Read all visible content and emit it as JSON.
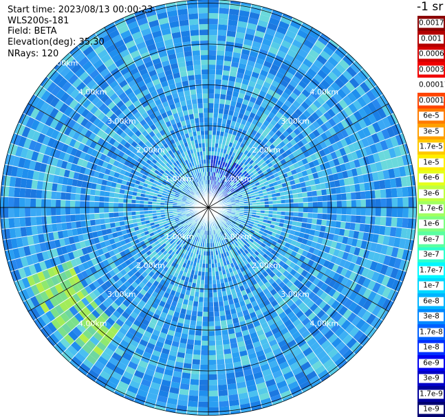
{
  "info": {
    "start_time": "Start time: 2023/08/13 00:00:23",
    "station": "WLS200s-181",
    "field": "Field: BETA",
    "elevation": "Elevation(deg): 35.30",
    "nrays": "NRays: 120"
  },
  "colorbar": {
    "unit": "-1 sr",
    "labels": [
      "0.0017",
      "0.001",
      "0.0006",
      "0.0003",
      "0.00017",
      "0.0001",
      "6e-5",
      "3e-5",
      "1.7e-5",
      "1e-5",
      "6e-6",
      "3e-6",
      "1.7e-6",
      "1e-6",
      "6e-7",
      "3e-7",
      "1.7e-7",
      "1e-7",
      "6e-8",
      "3e-8",
      "1.7e-8",
      "1e-8",
      "6e-9",
      "3e-9",
      "1.7e-9",
      "1e-9"
    ],
    "colors": [
      "#8b0000",
      "#b30000",
      "#d40000",
      "#f00000",
      "#ffffff",
      "#ff4500",
      "#ff7b00",
      "#ffa000",
      "#ffc800",
      "#ffee00",
      "#e6ff1a",
      "#bfff40",
      "#a0ff60",
      "#7dff80",
      "#5affa0",
      "#2dffcd",
      "#00f8ff",
      "#00d8ff",
      "#00b4ff",
      "#0088ff",
      "#0060ff",
      "#0030ff",
      "#0000f0",
      "#0000c8",
      "#00009c",
      "#000070"
    ]
  },
  "chart_data": {
    "type": "polar-ppi",
    "field": "BETA",
    "scan_start": "2023/08/13 00:00:23",
    "elevation_deg": 35.3,
    "n_rays": 120,
    "range_rings_km": [
      1.0,
      2.0,
      3.0,
      4.0,
      5.0
    ],
    "ring_labels": [
      "1.00km",
      "2.00km",
      "3.00km",
      "4.00km",
      "5.00km"
    ],
    "azimuth_spokes_deg": [
      0,
      30,
      60,
      90,
      120,
      150,
      180,
      210,
      240,
      270,
      300,
      330
    ],
    "dominant_range": "3e-8 to 1e-7 sr-1",
    "enhanced_region": {
      "azimuth_deg": [
        215,
        250
      ],
      "range_km": [
        3.6,
        4.7
      ],
      "value_range": "1e-7 to 1e-6"
    },
    "colorscale": "jet, logarithmic, 1e-9 to 0.0017"
  }
}
